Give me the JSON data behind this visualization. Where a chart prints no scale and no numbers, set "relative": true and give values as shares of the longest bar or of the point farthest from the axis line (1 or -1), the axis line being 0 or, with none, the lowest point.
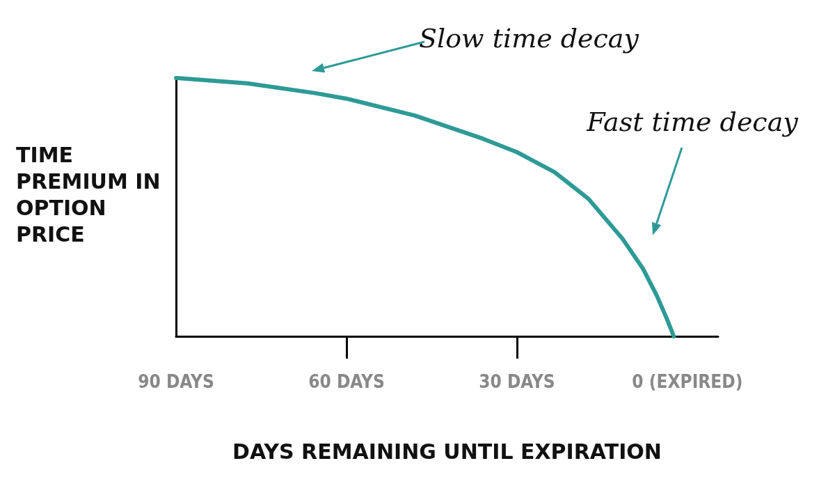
{
  "chart_data": {
    "type": "line",
    "relative": true,
    "xlabel": "DAYS REMAINING UNTIL EXPIRATION",
    "ylabel": "TIME PREMIUM IN OPTION PRICE",
    "xlim": [
      90,
      -5.4
    ],
    "xticks": [
      {
        "value": 90,
        "label": "90 DAYS"
      },
      {
        "value": 60,
        "label": "60 DAYS"
      },
      {
        "value": 30,
        "label": "30 DAYS"
      },
      {
        "value": 0,
        "label": "0 (EXPIRED)"
      }
    ],
    "series": [
      {
        "color": "#2e9a96",
        "x": [
          90,
          77.4,
          65.4,
          60,
          48,
          36,
          30,
          23.4,
          17.4,
          11.4,
          7.8,
          5.4,
          3.6,
          2.4
        ],
        "values": [
          1,
          0.979,
          0.941,
          0.92,
          0.855,
          0.765,
          0.713,
          0.636,
          0.532,
          0.377,
          0.261,
          0.158,
          0.067,
          0
        ]
      }
    ],
    "marker": "none",
    "grid": false,
    "annotations": [
      "Slow time decay",
      "Fast time decay"
    ]
  }
}
